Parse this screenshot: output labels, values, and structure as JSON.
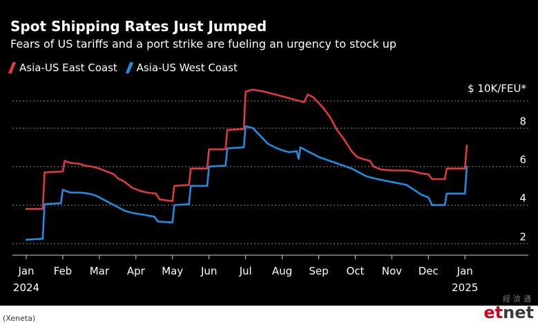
{
  "chart_data": {
    "type": "line",
    "title": "Spot Shipping Rates Just Jumped",
    "subtitle": "Fears of US tariffs and a port strike are fueling an urgency to stock up",
    "unit_label": "$ 10K/FEU*",
    "ylim": [
      1.4,
      10.2
    ],
    "y_ticks": [
      2,
      4,
      6,
      8
    ],
    "x_domain": [
      0,
      12.6
    ],
    "x_ticks": [
      {
        "x": 0,
        "label": "Jan",
        "year": "2024"
      },
      {
        "x": 1,
        "label": "Feb"
      },
      {
        "x": 2,
        "label": "Mar"
      },
      {
        "x": 3,
        "label": "Apr"
      },
      {
        "x": 4,
        "label": "May"
      },
      {
        "x": 5,
        "label": "Jun"
      },
      {
        "x": 6,
        "label": "Jul"
      },
      {
        "x": 7,
        "label": "Aug"
      },
      {
        "x": 8,
        "label": "Sep"
      },
      {
        "x": 9,
        "label": "Oct"
      },
      {
        "x": 10,
        "label": "Nov"
      },
      {
        "x": 11,
        "label": "Dec"
      },
      {
        "x": 12,
        "label": "Jan",
        "year": "2025"
      }
    ],
    "grid": "horizontal dotted",
    "legend_position": "top-left",
    "series": [
      {
        "name": "Asia-US East Coast",
        "color": "#e0393e",
        "points": [
          [
            0,
            3.8
          ],
          [
            0.45,
            3.8
          ],
          [
            0.5,
            5.7
          ],
          [
            1.0,
            5.75
          ],
          [
            1.05,
            6.3
          ],
          [
            1.2,
            6.2
          ],
          [
            1.45,
            6.15
          ],
          [
            1.6,
            6.05
          ],
          [
            1.8,
            6.0
          ],
          [
            2.0,
            5.9
          ],
          [
            2.2,
            5.75
          ],
          [
            2.4,
            5.6
          ],
          [
            2.5,
            5.4
          ],
          [
            2.7,
            5.2
          ],
          [
            2.9,
            4.9
          ],
          [
            3.1,
            4.75
          ],
          [
            3.3,
            4.65
          ],
          [
            3.55,
            4.6
          ],
          [
            3.65,
            4.3
          ],
          [
            4.0,
            4.2
          ],
          [
            4.05,
            5.0
          ],
          [
            4.45,
            5.05
          ],
          [
            4.5,
            5.9
          ],
          [
            4.95,
            5.9
          ],
          [
            5.0,
            6.9
          ],
          [
            5.45,
            6.9
          ],
          [
            5.5,
            7.9
          ],
          [
            5.95,
            7.95
          ],
          [
            6.0,
            9.9
          ],
          [
            6.2,
            10.0
          ],
          [
            6.5,
            9.9
          ],
          [
            6.8,
            9.75
          ],
          [
            7.0,
            9.65
          ],
          [
            7.3,
            9.5
          ],
          [
            7.6,
            9.35
          ],
          [
            7.7,
            9.75
          ],
          [
            7.85,
            9.6
          ],
          [
            8.1,
            9.1
          ],
          [
            8.3,
            8.6
          ],
          [
            8.5,
            7.9
          ],
          [
            8.7,
            7.4
          ],
          [
            8.9,
            6.8
          ],
          [
            9.05,
            6.5
          ],
          [
            9.2,
            6.4
          ],
          [
            9.4,
            6.3
          ],
          [
            9.5,
            6.0
          ],
          [
            9.7,
            5.85
          ],
          [
            10.0,
            5.8
          ],
          [
            10.4,
            5.8
          ],
          [
            10.6,
            5.75
          ],
          [
            10.8,
            5.65
          ],
          [
            11.0,
            5.6
          ],
          [
            11.1,
            5.35
          ],
          [
            11.45,
            5.35
          ],
          [
            11.5,
            5.9
          ],
          [
            12.0,
            5.9
          ],
          [
            12.05,
            7.1
          ]
        ]
      },
      {
        "name": "Asia-US West Coast",
        "color": "#1f8de0",
        "points": [
          [
            0,
            2.2
          ],
          [
            0.45,
            2.25
          ],
          [
            0.5,
            4.05
          ],
          [
            0.95,
            4.1
          ],
          [
            1.0,
            4.8
          ],
          [
            1.2,
            4.65
          ],
          [
            1.5,
            4.65
          ],
          [
            1.7,
            4.6
          ],
          [
            1.9,
            4.5
          ],
          [
            2.1,
            4.3
          ],
          [
            2.3,
            4.1
          ],
          [
            2.5,
            3.9
          ],
          [
            2.7,
            3.7
          ],
          [
            2.9,
            3.6
          ],
          [
            3.2,
            3.5
          ],
          [
            3.5,
            3.4
          ],
          [
            3.6,
            3.15
          ],
          [
            4.0,
            3.1
          ],
          [
            4.05,
            4.0
          ],
          [
            4.45,
            4.05
          ],
          [
            4.5,
            5.0
          ],
          [
            4.95,
            5.0
          ],
          [
            5.0,
            6.0
          ],
          [
            5.45,
            6.05
          ],
          [
            5.5,
            6.95
          ],
          [
            5.95,
            7.0
          ],
          [
            6.0,
            8.1
          ],
          [
            6.2,
            8.0
          ],
          [
            6.4,
            7.6
          ],
          [
            6.6,
            7.2
          ],
          [
            6.8,
            7.0
          ],
          [
            7.0,
            6.85
          ],
          [
            7.2,
            6.75
          ],
          [
            7.4,
            6.8
          ],
          [
            7.45,
            6.4
          ],
          [
            7.5,
            7.0
          ],
          [
            7.7,
            6.8
          ],
          [
            8.0,
            6.5
          ],
          [
            8.3,
            6.3
          ],
          [
            8.6,
            6.1
          ],
          [
            8.9,
            5.9
          ],
          [
            9.1,
            5.7
          ],
          [
            9.3,
            5.5
          ],
          [
            9.6,
            5.35
          ],
          [
            10.0,
            5.2
          ],
          [
            10.4,
            5.05
          ],
          [
            10.6,
            4.8
          ],
          [
            10.8,
            4.55
          ],
          [
            11.0,
            4.4
          ],
          [
            11.1,
            4.0
          ],
          [
            11.45,
            4.0
          ],
          [
            11.5,
            4.6
          ],
          [
            12.0,
            4.6
          ],
          [
            12.05,
            6.0
          ]
        ]
      }
    ]
  },
  "source": "(Xeneta)",
  "logo": {
    "cn": "經濟通",
    "et": "et",
    "net": "net"
  }
}
